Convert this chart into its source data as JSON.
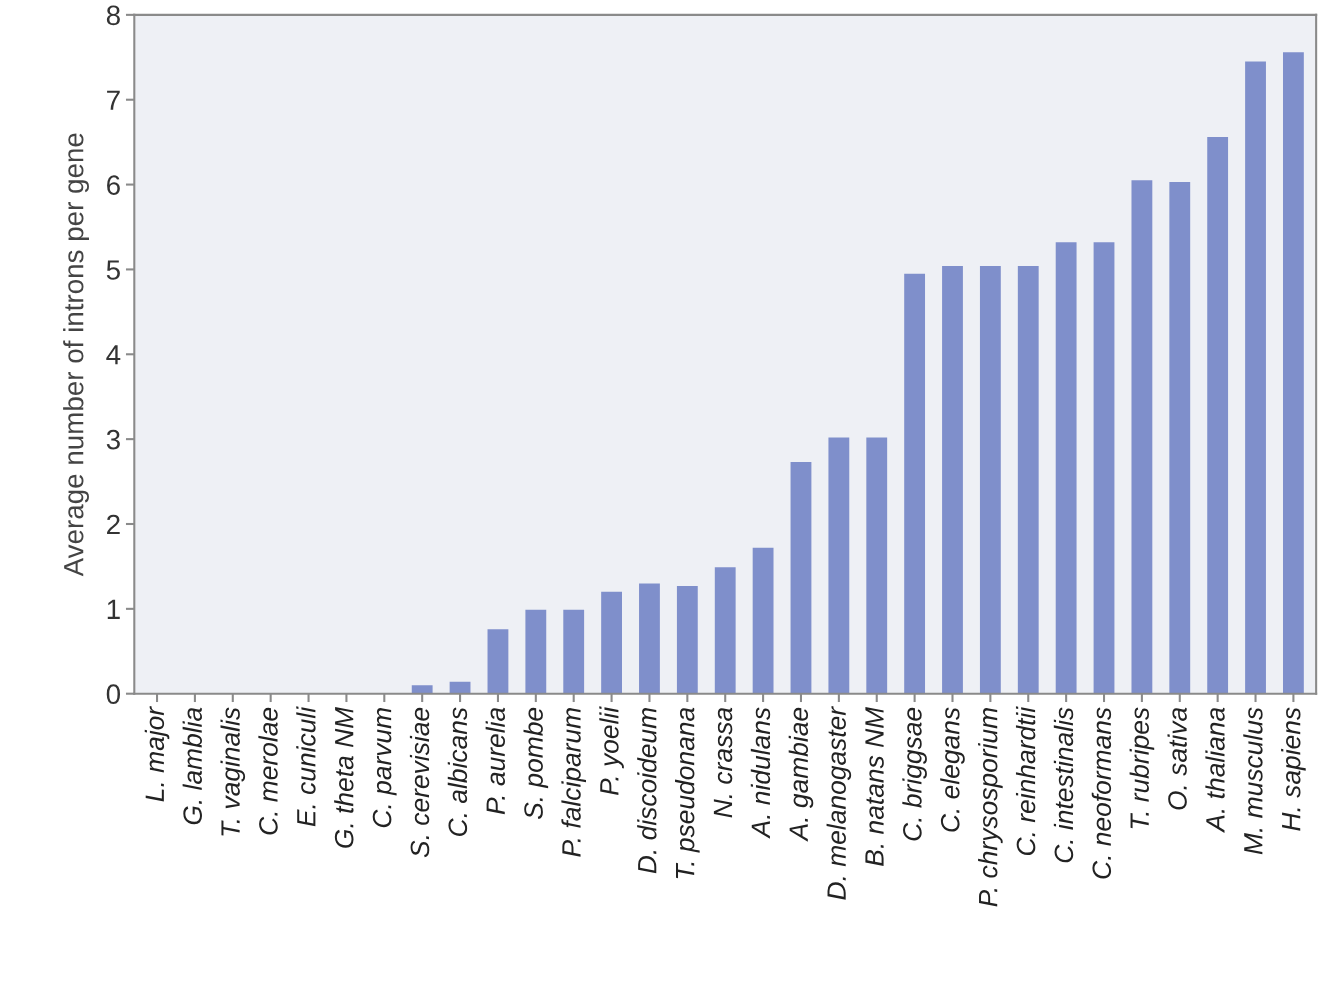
{
  "chart_data": {
    "type": "bar",
    "ylabel": "Average number of introns per gene",
    "categories": [
      "L. major",
      "G. lamblia",
      "T. vaginalis",
      "C. merolae",
      "E. cuniculi",
      "G. theta NM",
      "C. parvum",
      "S. cerevisiae",
      "C. albicans",
      "P. aurelia",
      "S. pombe",
      "P. falciparum",
      "P. yoelii",
      "D. discoideum",
      "T. pseudonana",
      "N. crassa",
      "A. nidulans",
      "A. gambiae",
      "D. melanogaster",
      "B. natans NM",
      "C. briggsae",
      "C. elegans",
      "P. chrysosporium",
      "C. reinhardtii",
      "C. intestinalis",
      "C. neoformans",
      "T. rubripes",
      "O. sativa",
      "A. thaliana",
      "M. musculus",
      "H. sapiens"
    ],
    "values": [
      0,
      0,
      0,
      0,
      0,
      0,
      0,
      0.1,
      0.14,
      0.76,
      0.99,
      0.99,
      1.2,
      1.3,
      1.27,
      1.49,
      1.72,
      2.73,
      3.02,
      3.02,
      4.95,
      5.04,
      5.04,
      5.04,
      5.32,
      5.32,
      6.05,
      6.03,
      6.56,
      7.45,
      7.56
    ],
    "color": "#7f8fcb",
    "ylim": [
      0,
      8
    ],
    "yticks": [
      0,
      1,
      2,
      3,
      4,
      5,
      6,
      7,
      8
    ],
    "grid": false
  }
}
